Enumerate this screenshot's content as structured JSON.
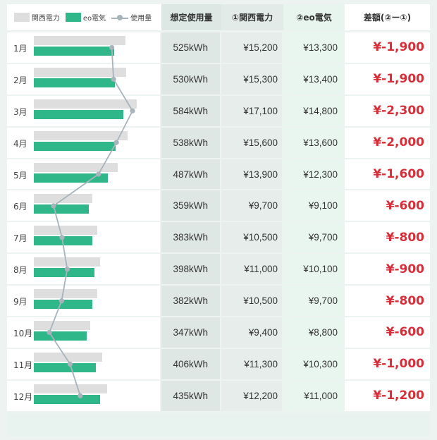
{
  "legend": {
    "kansai": "関西電力",
    "eo": "eo電気",
    "usage": "使用量"
  },
  "headers": {
    "assumed": "想定使用量",
    "kansai": "①関西電力",
    "eo": "②eo電気",
    "diff": "差額(②ー①)"
  },
  "colors": {
    "kansai_bar": "#dedede",
    "eo_bar": "#2fb78a",
    "usage_line": "#a7b4bc",
    "diff_text": "#d62f3a"
  },
  "rows": [
    {
      "month": "1月",
      "usage": "525kWh",
      "kansai": "¥15,200",
      "eo": "¥13,300",
      "diff": "¥-1,900",
      "usage_val": 525,
      "kansai_val": 15200,
      "eo_val": 13300
    },
    {
      "month": "2月",
      "usage": "530kWh",
      "kansai": "¥15,300",
      "eo": "¥13,400",
      "diff": "¥-1,900",
      "usage_val": 530,
      "kansai_val": 15300,
      "eo_val": 13400
    },
    {
      "month": "3月",
      "usage": "584kWh",
      "kansai": "¥17,100",
      "eo": "¥14,800",
      "diff": "¥-2,300",
      "usage_val": 584,
      "kansai_val": 17100,
      "eo_val": 14800
    },
    {
      "month": "4月",
      "usage": "538kWh",
      "kansai": "¥15,600",
      "eo": "¥13,600",
      "diff": "¥-2,000",
      "usage_val": 538,
      "kansai_val": 15600,
      "eo_val": 13600
    },
    {
      "month": "5月",
      "usage": "487kWh",
      "kansai": "¥13,900",
      "eo": "¥12,300",
      "diff": "¥-1,600",
      "usage_val": 487,
      "kansai_val": 13900,
      "eo_val": 12300
    },
    {
      "month": "6月",
      "usage": "359kWh",
      "kansai": "¥9,700",
      "eo": "¥9,100",
      "diff": "¥-600",
      "usage_val": 359,
      "kansai_val": 9700,
      "eo_val": 9100
    },
    {
      "month": "7月",
      "usage": "383kWh",
      "kansai": "¥10,500",
      "eo": "¥9,700",
      "diff": "¥-800",
      "usage_val": 383,
      "kansai_val": 10500,
      "eo_val": 9700
    },
    {
      "month": "8月",
      "usage": "398kWh",
      "kansai": "¥11,000",
      "eo": "¥10,100",
      "diff": "¥-900",
      "usage_val": 398,
      "kansai_val": 11000,
      "eo_val": 10100
    },
    {
      "month": "9月",
      "usage": "382kWh",
      "kansai": "¥10,500",
      "eo": "¥9,700",
      "diff": "¥-800",
      "usage_val": 382,
      "kansai_val": 10500,
      "eo_val": 9700
    },
    {
      "month": "10月",
      "usage": "347kWh",
      "kansai": "¥9,400",
      "eo": "¥8,800",
      "diff": "¥-600",
      "usage_val": 347,
      "kansai_val": 9400,
      "eo_val": 8800
    },
    {
      "month": "11月",
      "usage": "406kWh",
      "kansai": "¥11,300",
      "eo": "¥10,300",
      "diff": "¥-1,000",
      "usage_val": 406,
      "kansai_val": 11300,
      "eo_val": 10300
    },
    {
      "month": "12月",
      "usage": "435kWh",
      "kansai": "¥12,200",
      "eo": "¥11,000",
      "diff": "¥-1,200",
      "usage_val": 435,
      "kansai_val": 12200,
      "eo_val": 11000
    }
  ]
}
